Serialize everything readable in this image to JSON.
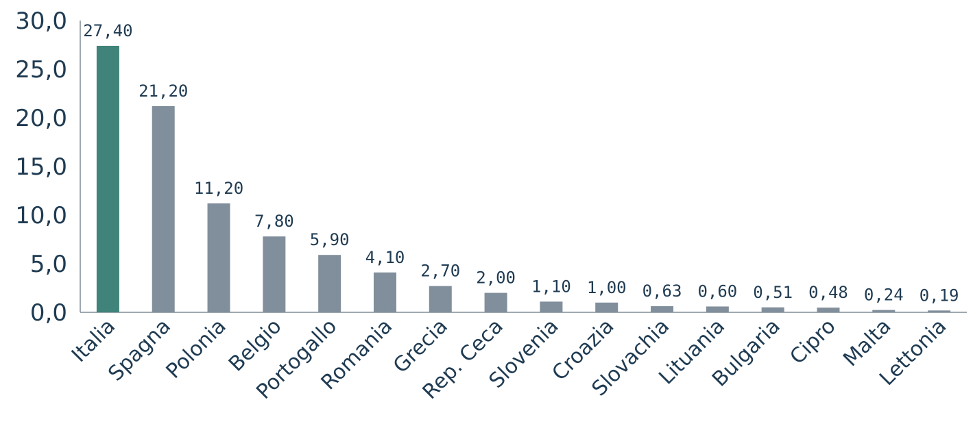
{
  "chart_data": {
    "type": "bar",
    "categories": [
      "Italia",
      "Spagna",
      "Polonia",
      "Belgio",
      "Portogallo",
      "Romania",
      "Grecia",
      "Rep. Ceca",
      "Slovenia",
      "Croazia",
      "Slovachia",
      "Lituania",
      "Bulgaria",
      "Cipro",
      "Malta",
      "Lettonia"
    ],
    "values": [
      27.4,
      21.2,
      11.2,
      7.8,
      5.9,
      4.1,
      2.7,
      2.0,
      1.1,
      1.0,
      0.63,
      0.6,
      0.51,
      0.48,
      0.24,
      0.19
    ],
    "data_labels": [
      "27,40",
      "21,20",
      "11,20",
      "7,80",
      "5,90",
      "4,10",
      "2,70",
      "2,00",
      "1,10",
      "1,00",
      "0,63",
      "0,60",
      "0,51",
      "0,48",
      "0,24",
      "0,19"
    ],
    "y_ticks": [
      0,
      5,
      10,
      15,
      20,
      25,
      30
    ],
    "y_tick_labels": [
      "0,0",
      "5,0",
      "10,0",
      "15,0",
      "20,0",
      "25,0",
      "30,0"
    ],
    "ylim": [
      0,
      30
    ],
    "title": "",
    "xlabel": "",
    "ylabel": "",
    "grid": false,
    "legend": "none",
    "colors": {
      "highlight": "#3f837a",
      "default": "#818e9b",
      "axis": "#7f8c97",
      "text": "#1f3b52"
    },
    "highlight_index": 0
  }
}
